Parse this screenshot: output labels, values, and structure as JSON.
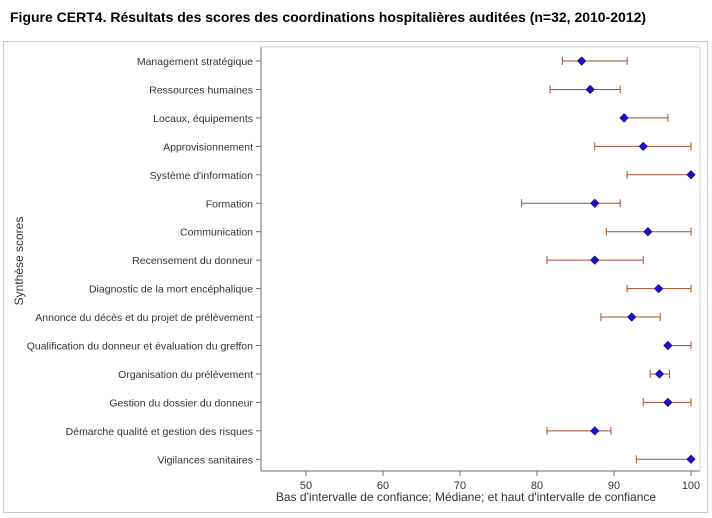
{
  "figure": {
    "title": "Figure CERT4. Résultats des scores des coordinations hospitalières auditées (n=32, 2010-2012)"
  },
  "colors": {
    "marker": "#1f10c8",
    "marker_outline": "#0c0880",
    "errorbar": "#a0522d",
    "axis": "#6e6e6e",
    "text": "#333333"
  },
  "chart_data": {
    "type": "scatter",
    "subtype": "dot-with-interval",
    "ylabel": "Synthèse scores",
    "xlabel": "Bas d'intervalle de confiance; Médiane; et haut d'intervalle de confiance",
    "xlim": [
      45,
      100
    ],
    "xticks": [
      50,
      60,
      70,
      80,
      90,
      100
    ],
    "grid": false,
    "legend": "none",
    "categories": [
      "Management stratégique",
      "Ressources humaines",
      "Locaux, équipements",
      "Approvisionnement",
      "Système d'information",
      "Formation",
      "Communication",
      "Recensement du donneur",
      "Diagnostic de la mort encéphalique",
      "Annonce du décès et du projet de prélèvement",
      "Qualification du donneur et évaluation du greffon",
      "Organisation du prélèvement",
      "Gestion du dossier du donneur",
      "Démarche qualité et gestion des risques",
      "Vigilances sanitaires"
    ],
    "lower": [
      83.3,
      81.7,
      91.5,
      87.5,
      91.7,
      78.0,
      89.0,
      81.3,
      91.7,
      88.3,
      97.0,
      94.7,
      93.8,
      81.3,
      92.9
    ],
    "median": [
      85.8,
      86.9,
      91.3,
      93.8,
      100.0,
      87.5,
      94.4,
      87.5,
      95.8,
      92.3,
      97.0,
      95.9,
      97.0,
      87.5,
      100.0
    ],
    "upper": [
      91.7,
      90.8,
      97.0,
      100.0,
      100.0,
      90.8,
      100.0,
      93.8,
      100.0,
      96.0,
      100.0,
      97.2,
      100.0,
      89.6,
      100.0
    ]
  }
}
